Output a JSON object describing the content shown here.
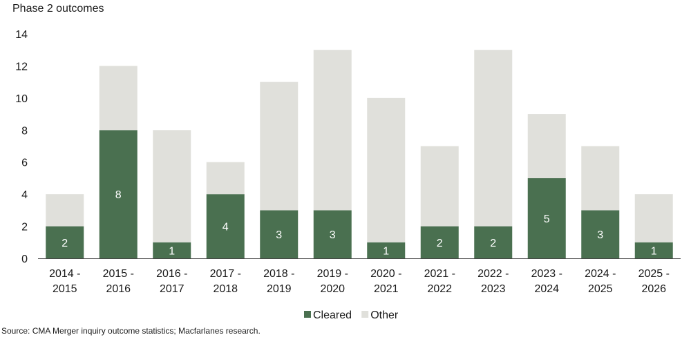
{
  "chart_data": {
    "type": "bar",
    "stacked": true,
    "ylabel": "Phase 2 outcomes",
    "xlabel": "",
    "ylim": [
      0,
      14
    ],
    "yticks": [
      0,
      2,
      4,
      6,
      8,
      10,
      12,
      14
    ],
    "grid": false,
    "legend": "bottom",
    "categories": [
      [
        "2014 -",
        "2015"
      ],
      [
        "2015 -",
        "2016"
      ],
      [
        "2016 -",
        "2017"
      ],
      [
        "2017 -",
        "2018"
      ],
      [
        "2018 -",
        "2019"
      ],
      [
        "2019 -",
        "2020"
      ],
      [
        "2020 -",
        "2021"
      ],
      [
        "2021 -",
        "2022"
      ],
      [
        "2022 -",
        "2023"
      ],
      [
        "2023 -",
        "2024"
      ],
      [
        "2024 -",
        "2025"
      ],
      [
        "2025 -",
        "2026"
      ]
    ],
    "series": [
      {
        "name": "Cleared",
        "color": "#4a7050",
        "values": [
          2,
          8,
          1,
          4,
          3,
          3,
          1,
          2,
          2,
          5,
          3,
          1
        ],
        "show_labels": true
      },
      {
        "name": "Other",
        "color": "#e0e0db",
        "values": [
          2,
          4,
          7,
          2,
          8,
          10,
          9,
          5,
          11,
          4,
          4,
          3
        ],
        "show_labels": false
      }
    ]
  },
  "source": "Source: CMA Merger inquiry outcome statistics; Macfarlanes research."
}
